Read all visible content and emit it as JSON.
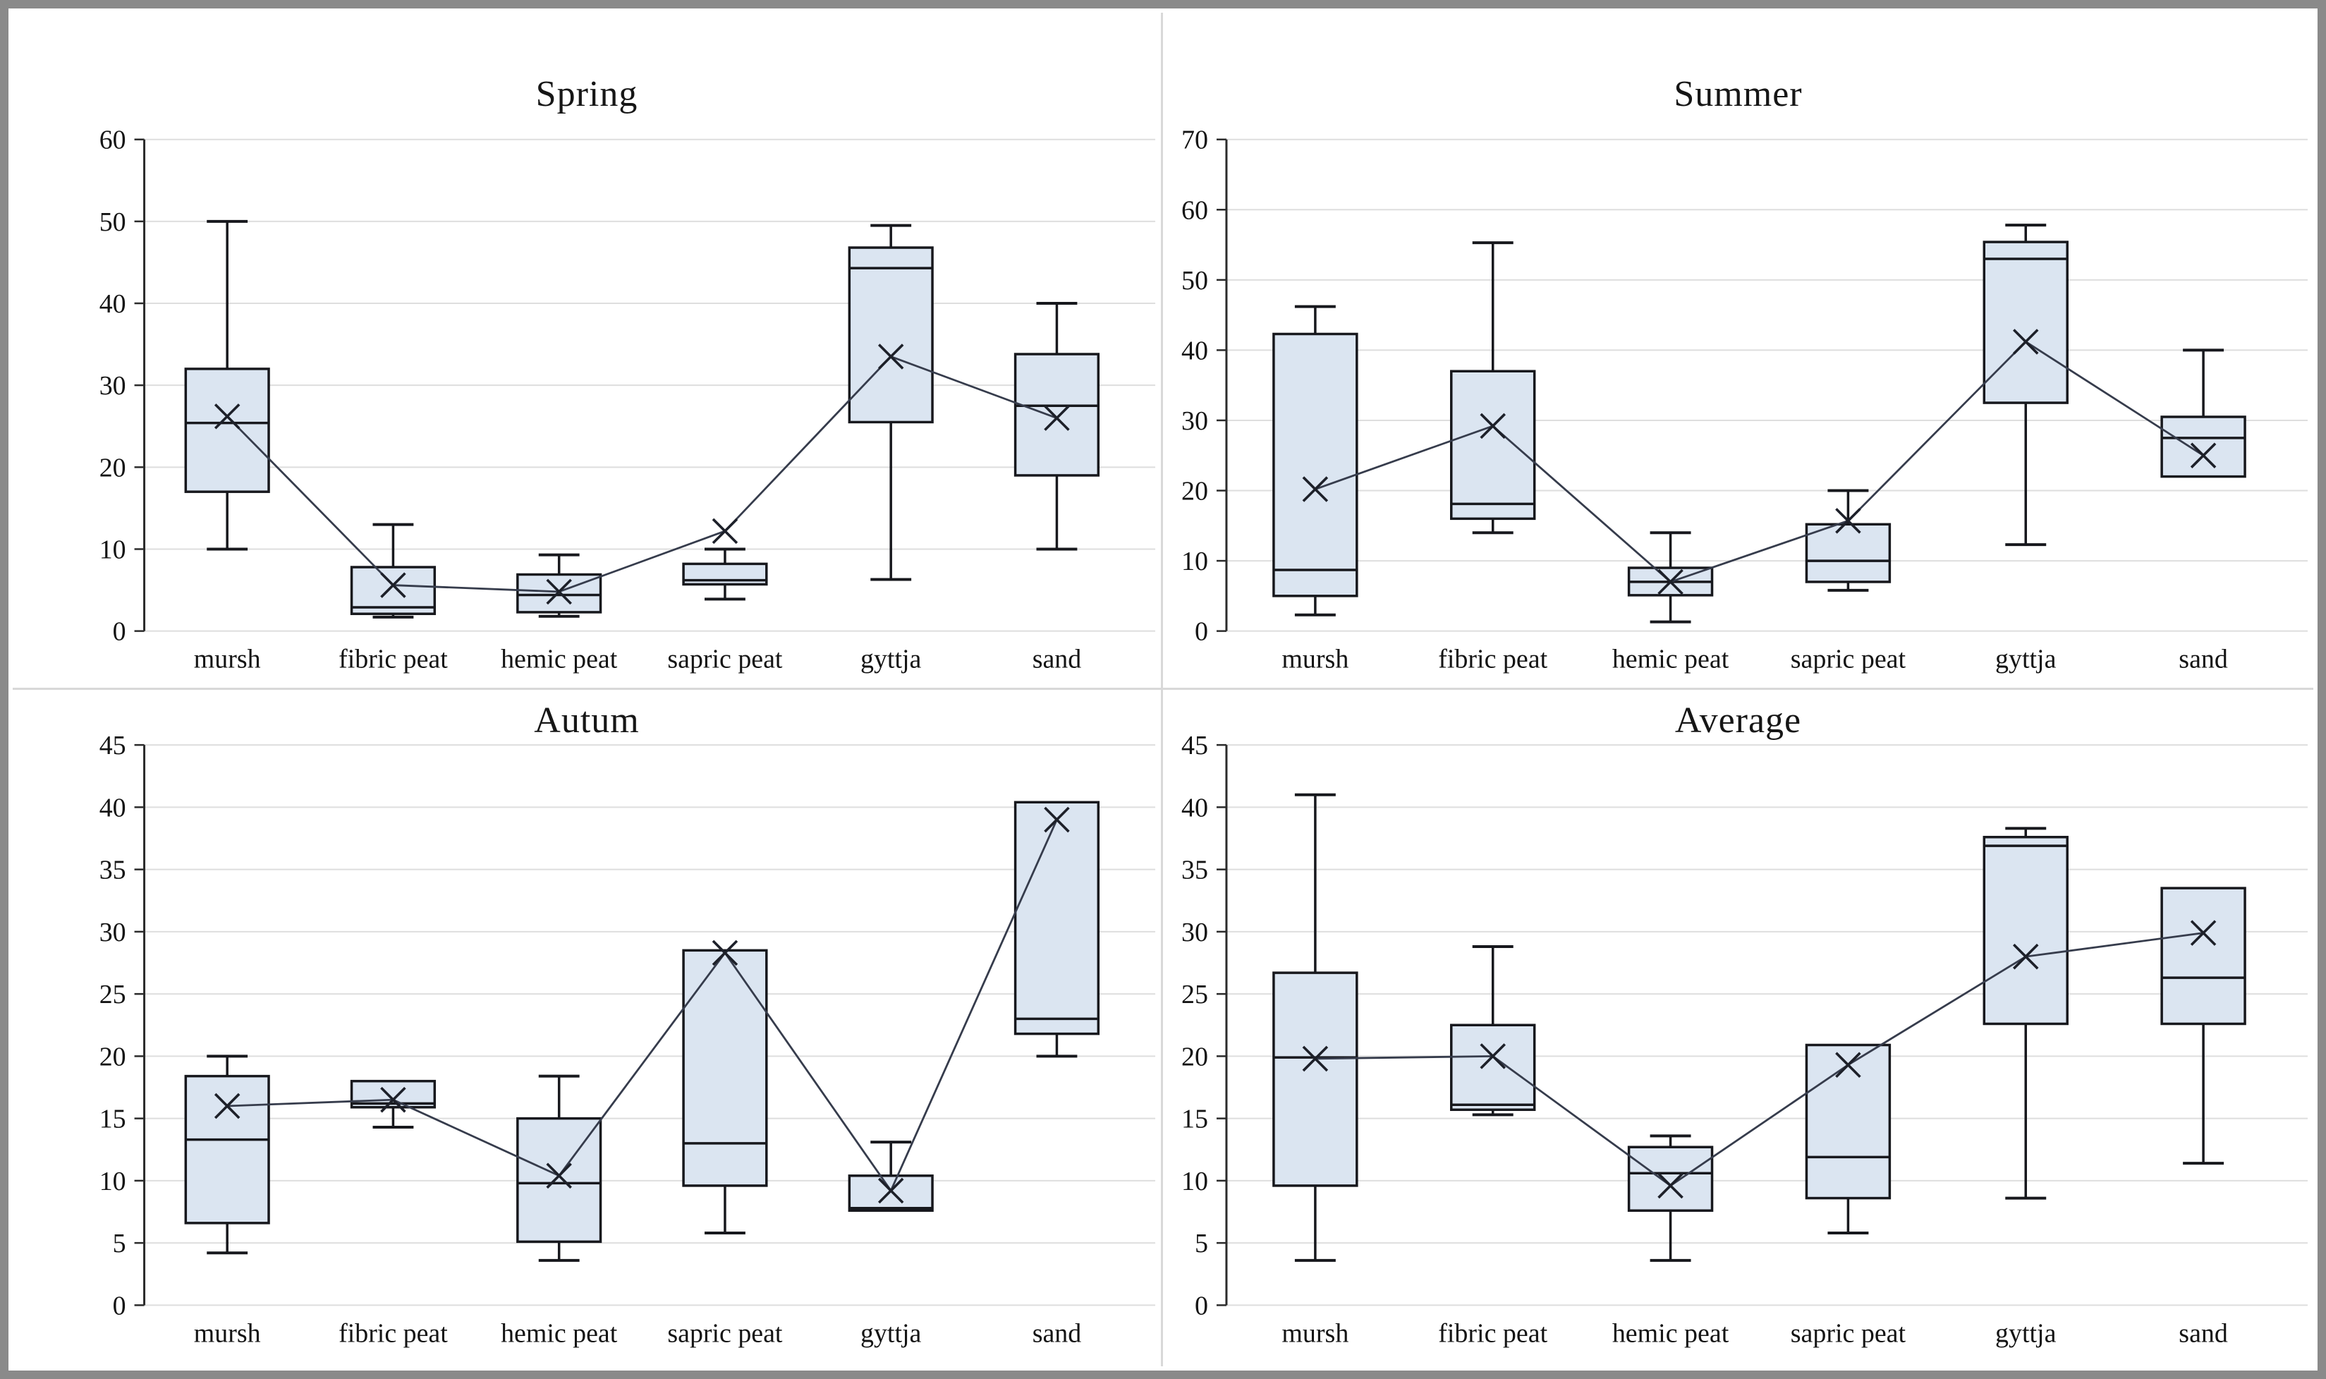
{
  "colors": {
    "box_fill": "#dbe5f1",
    "box_stroke": "#17181d",
    "whisker": "#17181d",
    "median": "#17181d",
    "mean_line": "#363c4c",
    "mean_marker": "#1d2029",
    "gridline": "#dedede",
    "axis": "#2b2b2b",
    "text": "#141414",
    "frame_border": "#8a8a8a",
    "panel_separator": "#d8d8d8",
    "background": "#ffffff"
  },
  "chart_data": {
    "type": "box",
    "layout": {
      "grid": "2x2",
      "legend": "none",
      "gridlines": "horizontal",
      "mean_markers": "x-connected-by-line"
    },
    "categories": [
      "mursh",
      "fibric peat",
      "hemic peat",
      "sapric peat",
      "gyttja",
      "sand"
    ],
    "panels": [
      {
        "title": "Spring",
        "ylim": [
          0,
          60
        ],
        "ystep": 10,
        "yticks": [
          0,
          10,
          20,
          30,
          40,
          50,
          60
        ],
        "boxes": [
          {
            "category": "mursh",
            "whisker_low": 10,
            "q1": 17,
            "median": 25.4,
            "q3": 32,
            "whisker_high": 50,
            "mean": 26.2
          },
          {
            "category": "fibric peat",
            "whisker_low": 1.7,
            "q1": 2.1,
            "median": 2.9,
            "q3": 7.8,
            "whisker_high": 13,
            "mean": 5.6
          },
          {
            "category": "hemic peat",
            "whisker_low": 1.8,
            "q1": 2.3,
            "median": 4.4,
            "q3": 6.9,
            "whisker_high": 9.3,
            "mean": 4.8
          },
          {
            "category": "sapric peat",
            "whisker_low": 3.9,
            "q1": 5.7,
            "median": 6.2,
            "q3": 8.2,
            "whisker_high": 10,
            "mean": 12.2
          },
          {
            "category": "gyttja",
            "whisker_low": 6.3,
            "q1": 25.5,
            "median": 44.3,
            "q3": 46.8,
            "whisker_high": 49.5,
            "mean": 33.5
          },
          {
            "category": "sand",
            "whisker_low": 10,
            "q1": 19,
            "median": 27.5,
            "q3": 33.8,
            "whisker_high": 40,
            "mean": 26
          }
        ]
      },
      {
        "title": "Summer",
        "ylim": [
          0,
          70
        ],
        "ystep": 10,
        "yticks": [
          0,
          10,
          20,
          30,
          40,
          50,
          60,
          70
        ],
        "boxes": [
          {
            "category": "mursh",
            "whisker_low": 2.3,
            "q1": 5,
            "median": 8.7,
            "q3": 42.3,
            "whisker_high": 46.2,
            "mean": 20.2
          },
          {
            "category": "fibric peat",
            "whisker_low": 14,
            "q1": 16,
            "median": 18.1,
            "q3": 37,
            "whisker_high": 55.3,
            "mean": 29.2
          },
          {
            "category": "hemic peat",
            "whisker_low": 1.3,
            "q1": 5.1,
            "median": 7,
            "q3": 9,
            "whisker_high": 14,
            "mean": 7
          },
          {
            "category": "sapric peat",
            "whisker_low": 5.8,
            "q1": 7,
            "median": 10,
            "q3": 15.2,
            "whisker_high": 20,
            "mean": 15.7
          },
          {
            "category": "gyttja",
            "whisker_low": 12.3,
            "q1": 32.5,
            "median": 53,
            "q3": 55.4,
            "whisker_high": 57.8,
            "mean": 41.2
          },
          {
            "category": "sand",
            "whisker_low": 22,
            "q1": 22,
            "median": 27.5,
            "q3": 30.5,
            "whisker_high": 40,
            "mean": 25
          }
        ]
      },
      {
        "title": "Autum",
        "ylim": [
          0,
          45
        ],
        "ystep": 5,
        "yticks": [
          0,
          5,
          10,
          15,
          20,
          25,
          30,
          35,
          40,
          45
        ],
        "boxes": [
          {
            "category": "mursh",
            "whisker_low": 4.2,
            "q1": 6.6,
            "median": 13.3,
            "q3": 18.4,
            "whisker_high": 20,
            "mean": 16
          },
          {
            "category": "fibric peat",
            "whisker_low": 14.3,
            "q1": 15.9,
            "median": 16.2,
            "q3": 18,
            "whisker_high": 18,
            "mean": 16.5
          },
          {
            "category": "hemic peat",
            "whisker_low": 3.6,
            "q1": 5.1,
            "median": 9.8,
            "q3": 15,
            "whisker_high": 18.4,
            "mean": 10.4
          },
          {
            "category": "sapric peat",
            "whisker_low": 5.8,
            "q1": 9.6,
            "median": 13,
            "q3": 28.5,
            "whisker_high": 28.5,
            "mean": 28.3
          },
          {
            "category": "gyttja",
            "whisker_low": 7.6,
            "q1": 7.6,
            "median": 7.8,
            "q3": 10.4,
            "whisker_high": 13.1,
            "mean": 9.2
          },
          {
            "category": "sand",
            "whisker_low": 20,
            "q1": 21.8,
            "median": 23,
            "q3": 40.4,
            "whisker_high": 40.4,
            "mean": 39
          }
        ]
      },
      {
        "title": "Average",
        "ylim": [
          0,
          45
        ],
        "ystep": 5,
        "yticks": [
          0,
          5,
          10,
          15,
          20,
          25,
          30,
          35,
          40,
          45
        ],
        "boxes": [
          {
            "category": "mursh",
            "whisker_low": 3.6,
            "q1": 9.6,
            "median": 19.9,
            "q3": 26.7,
            "whisker_high": 41,
            "mean": 19.8
          },
          {
            "category": "fibric peat",
            "whisker_low": 15.3,
            "q1": 15.7,
            "median": 16.1,
            "q3": 22.5,
            "whisker_high": 28.8,
            "mean": 20
          },
          {
            "category": "hemic peat",
            "whisker_low": 3.6,
            "q1": 7.6,
            "median": 10.6,
            "q3": 12.7,
            "whisker_high": 13.6,
            "mean": 9.6
          },
          {
            "category": "sapric peat",
            "whisker_low": 5.8,
            "q1": 8.6,
            "median": 11.9,
            "q3": 20.9,
            "whisker_high": 20.9,
            "mean": 19.3
          },
          {
            "category": "gyttja",
            "whisker_low": 8.6,
            "q1": 22.6,
            "median": 36.9,
            "q3": 37.6,
            "whisker_high": 38.3,
            "mean": 28
          },
          {
            "category": "sand",
            "whisker_low": 11.4,
            "q1": 22.6,
            "median": 26.3,
            "q3": 33.5,
            "whisker_high": 33.5,
            "mean": 29.9
          }
        ]
      }
    ]
  }
}
